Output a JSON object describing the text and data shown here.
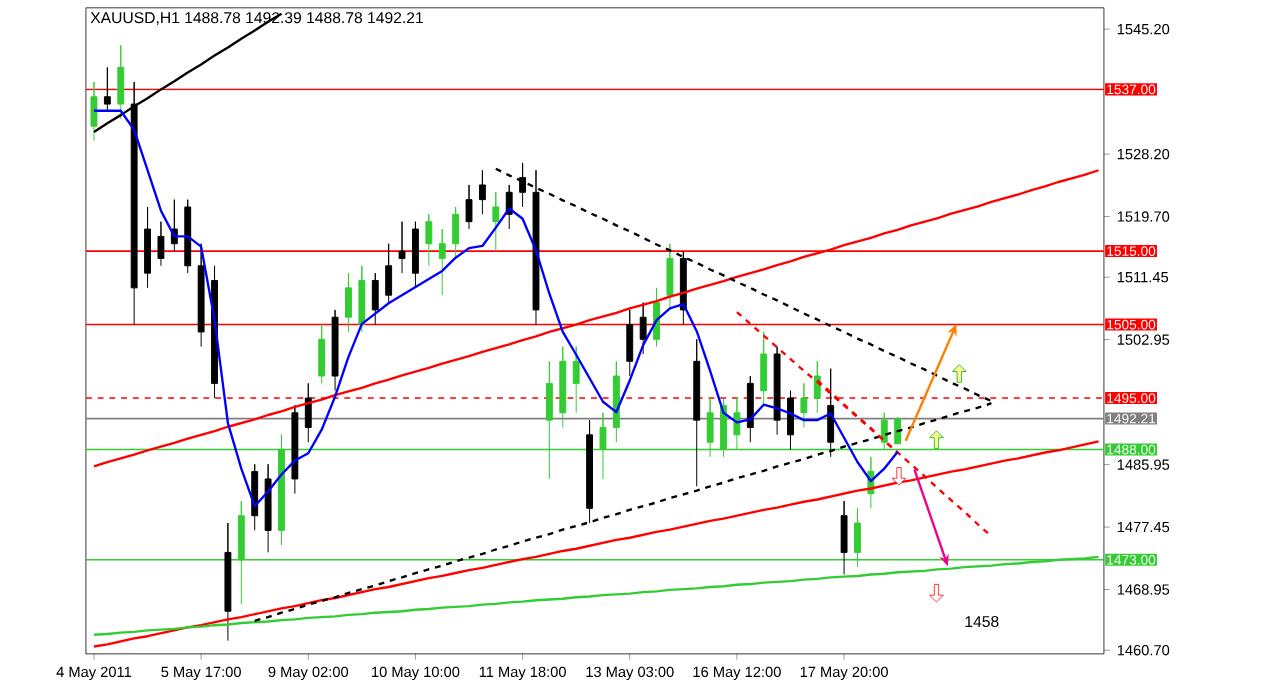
{
  "chart_data": {
    "type": "candlestick",
    "title": "XAUUSD,H1  1488.78 1492.39 1488.78 1492.21",
    "ylim": [
      1460.2,
      1548.1
    ],
    "yticks": [
      {
        "value": 1545.2,
        "label": "1545.20"
      },
      {
        "value": 1528.2,
        "label": "1528.20"
      },
      {
        "value": 1519.7,
        "label": "1519.70"
      },
      {
        "value": 1511.45,
        "label": "1511.45"
      },
      {
        "value": 1502.95,
        "label": "1502.95"
      },
      {
        "value": 1485.95,
        "label": "1485.95"
      },
      {
        "value": 1477.45,
        "label": "1477.45"
      },
      {
        "value": 1468.95,
        "label": "1468.95"
      },
      {
        "value": 1460.7,
        "label": "1460.70"
      }
    ],
    "categories": [
      "4 May 2011",
      null,
      null,
      null,
      null,
      null,
      null,
      null,
      "5 May 17:00",
      null,
      null,
      null,
      null,
      null,
      null,
      null,
      "9 May 02:00",
      null,
      null,
      null,
      null,
      null,
      null,
      null,
      "10 May 10:00",
      null,
      null,
      null,
      null,
      null,
      null,
      null,
      "11 May 18:00",
      null,
      null,
      null,
      null,
      null,
      null,
      null,
      "13 May 03:00",
      null,
      null,
      null,
      null,
      null,
      null,
      null,
      "16 May 12:00",
      null,
      null,
      null,
      null,
      null,
      null,
      null,
      "17 May 20:00",
      null,
      null,
      null,
      null,
      null,
      null,
      null,
      null,
      null,
      null,
      null,
      null,
      null,
      null,
      null,
      null,
      null,
      null,
      null
    ],
    "ohlc": [
      [
        1532,
        1538,
        1530,
        1536
      ],
      [
        1536,
        1540,
        1534,
        1535
      ],
      [
        1535,
        1543,
        1533,
        1540
      ],
      [
        1535,
        1538,
        1505,
        1510
      ],
      [
        1518,
        1521,
        1510,
        1512
      ],
      [
        1517,
        1519,
        1513,
        1514
      ],
      [
        1518,
        1522,
        1515,
        1516
      ],
      [
        1521,
        1522,
        1512,
        1513
      ],
      [
        1513,
        1516,
        1502,
        1504
      ],
      [
        1511,
        1513,
        1495,
        1497
      ],
      [
        1474,
        1478,
        1462,
        1466
      ],
      [
        1473,
        1481,
        1467,
        1479
      ],
      [
        1485,
        1486,
        1477,
        1479
      ],
      [
        1484,
        1486,
        1474,
        1477
      ],
      [
        1477,
        1490,
        1475,
        1488
      ],
      [
        1493,
        1494,
        1482,
        1484
      ],
      [
        1495,
        1497,
        1489,
        1491
      ],
      [
        1498,
        1505,
        1497,
        1503
      ],
      [
        1506,
        1507,
        1496,
        1498
      ],
      [
        1506,
        1512,
        1504,
        1510
      ],
      [
        1505,
        1513,
        1504,
        1511
      ],
      [
        1511,
        1512,
        1505,
        1507
      ],
      [
        1513,
        1516,
        1508,
        1509
      ],
      [
        1515,
        1519,
        1512,
        1514
      ],
      [
        1518,
        1519,
        1510,
        1512
      ],
      [
        1516,
        1520,
        1513,
        1519
      ],
      [
        1514,
        1518,
        1509,
        1516
      ],
      [
        1516,
        1521,
        1514,
        1520
      ],
      [
        1522,
        1524,
        1518,
        1519
      ],
      [
        1524,
        1526,
        1520,
        1522
      ],
      [
        1519,
        1523,
        1515,
        1521
      ],
      [
        1523,
        1524,
        1518,
        1520
      ],
      [
        1525,
        1527,
        1521,
        1523
      ],
      [
        1523,
        1526,
        1505,
        1507
      ],
      [
        1492,
        1500,
        1484,
        1497
      ],
      [
        1493,
        1502,
        1491,
        1500
      ],
      [
        1497,
        1502,
        1493,
        1500
      ],
      [
        1490,
        1492,
        1478,
        1480
      ],
      [
        1488,
        1493,
        1484,
        1491
      ],
      [
        1491,
        1500,
        1489,
        1498
      ],
      [
        1505,
        1507,
        1498,
        1500
      ],
      [
        1506,
        1508,
        1501,
        1503
      ],
      [
        1503,
        1510,
        1502,
        1508
      ],
      [
        1509,
        1516,
        1507,
        1514
      ],
      [
        1514,
        1515,
        1505,
        1507
      ],
      [
        1500,
        1503,
        1483,
        1492
      ],
      [
        1489,
        1495,
        1487,
        1493
      ],
      [
        1488,
        1495,
        1487,
        1494
      ],
      [
        1490,
        1495,
        1488,
        1493
      ],
      [
        1497,
        1498,
        1489,
        1491
      ],
      [
        1496,
        1504,
        1494,
        1501
      ],
      [
        1501,
        1502,
        1490,
        1492
      ],
      [
        1495,
        1496,
        1488,
        1490
      ],
      [
        1493,
        1497,
        1491,
        1495
      ],
      [
        1495,
        1500,
        1493,
        1498
      ],
      [
        1494,
        1499,
        1487,
        1489
      ],
      [
        1479,
        1481,
        1471,
        1474
      ],
      [
        1474,
        1480,
        1472,
        1478
      ],
      [
        1482,
        1487,
        1480,
        1485
      ],
      [
        1489,
        1493,
        1488,
        1492
      ],
      [
        1488.78,
        1492.39,
        1488.78,
        1492.21
      ],
      null,
      null,
      null,
      null,
      null,
      null,
      null,
      null,
      null,
      null,
      null,
      null,
      null,
      null,
      null
    ],
    "colors": [
      "#33cc33",
      "#000000",
      "#33cc33",
      "#000000",
      "#000000",
      "#000000",
      "#000000",
      "#000000",
      "#000000",
      "#000000",
      "#000000",
      "#33cc33",
      "#000000",
      "#000000",
      "#33cc33",
      "#000000",
      "#000000",
      "#33cc33",
      "#000000",
      "#33cc33",
      "#33cc33",
      "#000000",
      "#000000",
      "#000000",
      "#000000",
      "#33cc33",
      "#33cc33",
      "#33cc33",
      "#000000",
      "#000000",
      "#33cc33",
      "#000000",
      "#000000",
      "#000000",
      "#33cc33",
      "#33cc33",
      "#33cc33",
      "#000000",
      "#33cc33",
      "#33cc33",
      "#000000",
      "#000000",
      "#33cc33",
      "#33cc33",
      "#000000",
      "#000000",
      "#33cc33",
      "#33cc33",
      "#33cc33",
      "#000000",
      "#33cc33",
      "#000000",
      "#000000",
      "#33cc33",
      "#33cc33",
      "#000000",
      "#000000",
      "#33cc33",
      "#33cc33",
      "#33cc33",
      "#33cc33",
      null,
      null,
      null,
      null,
      null,
      null,
      null,
      null,
      null,
      null,
      null,
      null,
      null,
      null,
      null
    ],
    "series": [
      {
        "type": "line",
        "color": "#ff0000",
        "values": [
          1485.7,
          1486.3,
          1486.8,
          1487.3,
          1487.9,
          1488.4,
          1488.9,
          1489.5,
          1490.0,
          1490.5,
          1491.1,
          1491.6,
          1492.1,
          1492.7,
          1493.2,
          1493.8,
          1494.3,
          1494.8,
          1495.4,
          1495.9,
          1496.4,
          1497.0,
          1497.5,
          1498.1,
          1498.6,
          1499.1,
          1499.7,
          1500.2,
          1500.7,
          1501.3,
          1501.8,
          1502.3,
          1502.9,
          1503.4,
          1504.0,
          1504.5,
          1505.0,
          1505.6,
          1506.1,
          1506.6,
          1507.2,
          1507.7,
          1508.2,
          1508.8,
          1509.3,
          1509.9,
          1510.4,
          1510.9,
          1511.5,
          1512.0,
          1512.5,
          1513.1,
          1513.6,
          1514.2,
          1514.7,
          1515.2,
          1515.8,
          1516.3,
          1516.8,
          1517.4,
          1517.9,
          1518.5,
          1519.0,
          1519.5,
          1520.1,
          1520.6,
          1521.1,
          1521.7,
          1522.2,
          1522.7,
          1523.3,
          1523.8,
          1524.4,
          1524.9,
          1525.4,
          1526.0
        ]
      },
      {
        "type": "line",
        "color": "#ff0000",
        "values": [
          1461.2,
          1461.5,
          1461.9,
          1462.3,
          1462.6,
          1463.0,
          1463.4,
          1463.8,
          1464.1,
          1464.5,
          1464.9,
          1465.2,
          1465.6,
          1466.0,
          1466.4,
          1466.7,
          1467.1,
          1467.5,
          1467.8,
          1468.2,
          1468.6,
          1469.0,
          1469.3,
          1469.7,
          1470.1,
          1470.5,
          1470.8,
          1471.2,
          1471.6,
          1471.9,
          1472.3,
          1472.7,
          1473.1,
          1473.4,
          1473.8,
          1474.2,
          1474.5,
          1474.9,
          1475.3,
          1475.7,
          1476.0,
          1476.4,
          1476.8,
          1477.1,
          1477.5,
          1477.9,
          1478.3,
          1478.6,
          1479.0,
          1479.4,
          1479.8,
          1480.1,
          1480.5,
          1480.9,
          1481.2,
          1481.6,
          1482.0,
          1482.4,
          1482.7,
          1483.1,
          1483.5,
          1483.8,
          1484.2,
          1484.6,
          1485.0,
          1485.3,
          1485.7,
          1486.1,
          1486.5,
          1486.8,
          1487.2,
          1487.6,
          1487.9,
          1488.3,
          1488.7,
          1489.1
        ]
      },
      {
        "type": "line",
        "color": "#33cc33",
        "values": [
          1462.8,
          1462.9,
          1463.1,
          1463.2,
          1463.4,
          1463.5,
          1463.6,
          1463.8,
          1463.9,
          1464.1,
          1464.2,
          1464.4,
          1464.5,
          1464.6,
          1464.8,
          1464.9,
          1465.1,
          1465.2,
          1465.3,
          1465.5,
          1465.6,
          1465.8,
          1465.9,
          1466.0,
          1466.2,
          1466.3,
          1466.5,
          1466.6,
          1466.7,
          1466.9,
          1467.0,
          1467.2,
          1467.3,
          1467.5,
          1467.6,
          1467.7,
          1467.9,
          1468.0,
          1468.2,
          1468.3,
          1468.4,
          1468.6,
          1468.7,
          1468.9,
          1469.0,
          1469.1,
          1469.3,
          1469.4,
          1469.6,
          1469.7,
          1469.9,
          1470.0,
          1470.1,
          1470.3,
          1470.4,
          1470.6,
          1470.7,
          1470.8,
          1471.0,
          1471.1,
          1471.3,
          1471.4,
          1471.5,
          1471.7,
          1471.8,
          1472.0,
          1472.1,
          1472.2,
          1472.4,
          1472.5,
          1472.7,
          1472.8,
          1473.0,
          1473.1,
          1473.2,
          1473.4
        ]
      },
      {
        "type": "line",
        "color": "#000000",
        "line_style": "dashed",
        "values": [
          null,
          null,
          null,
          null,
          null,
          null,
          null,
          null,
          null,
          null,
          null,
          null,
          null,
          null,
          null,
          null,
          null,
          null,
          null,
          null,
          null,
          null,
          null,
          null,
          null,
          null,
          null,
          null,
          null,
          null,
          1526.2,
          1525.3,
          1524.5,
          1523.6,
          1522.8,
          1521.9,
          1521.1,
          1520.2,
          1519.4,
          1518.5,
          1517.7,
          1516.8,
          1515.9,
          1515.1,
          1514.2,
          1513.4,
          1512.5,
          1511.7,
          1510.8,
          1510.0,
          1509.1,
          1508.3,
          1507.4,
          1506.5,
          1505.7,
          1504.8,
          1504.0,
          1503.1,
          1502.3,
          1501.4,
          1500.6,
          1499.7,
          1498.9,
          1498.0,
          1497.1,
          1496.3,
          1495.4,
          1494.6,
          null,
          null,
          null,
          null,
          null,
          null,
          null,
          null
        ]
      },
      {
        "type": "line",
        "color": "#000000",
        "line_style": "dashed",
        "values": [
          null,
          null,
          null,
          null,
          null,
          null,
          null,
          null,
          null,
          null,
          null,
          null,
          1464.7,
          1465.2,
          1465.8,
          1466.3,
          1466.9,
          1467.4,
          1467.9,
          1468.5,
          1469.0,
          1469.5,
          1470.1,
          1470.6,
          1471.2,
          1471.7,
          1472.2,
          1472.8,
          1473.3,
          1473.8,
          1474.4,
          1474.9,
          1475.5,
          1476.0,
          1476.5,
          1477.1,
          1477.6,
          1478.1,
          1478.7,
          1479.2,
          1479.8,
          1480.3,
          1480.8,
          1481.4,
          1481.9,
          1482.4,
          1483.0,
          1483.5,
          1484.1,
          1484.6,
          1485.1,
          1485.7,
          1486.2,
          1486.7,
          1487.3,
          1487.8,
          1488.4,
          1488.9,
          1489.4,
          1490.0,
          1490.5,
          1491.0,
          1491.6,
          1492.1,
          1492.7,
          1493.2,
          1493.7,
          1494.3,
          null,
          null,
          null,
          null,
          null,
          null,
          null,
          null
        ]
      },
      {
        "type": "line",
        "color": "#000000",
        "values": [
          1531.2,
          1532.4,
          1533.5,
          1534.7,
          1535.8,
          1537.0,
          1538.1,
          1539.3,
          1540.4,
          1541.6,
          1542.7,
          1543.9,
          1545.0,
          1546.2,
          1547.3,
          null,
          null,
          null,
          null,
          null,
          null,
          null,
          null,
          null,
          null,
          null,
          null,
          null,
          null,
          null,
          null,
          null,
          null,
          null,
          null,
          null,
          null,
          null,
          null,
          null,
          null,
          null,
          null,
          null,
          null,
          null,
          null,
          null,
          null,
          null,
          null,
          null,
          null,
          null,
          null,
          null,
          null,
          null,
          null,
          null,
          null,
          null,
          null,
          null,
          null,
          null,
          null,
          null,
          null,
          null,
          null,
          null,
          null,
          null,
          null,
          null
        ]
      },
      {
        "type": "line",
        "color": "#ff0000",
        "line_style": "dashed",
        "values": [
          null,
          null,
          null,
          null,
          null,
          null,
          null,
          null,
          null,
          null,
          null,
          null,
          null,
          null,
          null,
          null,
          null,
          null,
          null,
          null,
          null,
          null,
          null,
          null,
          null,
          null,
          null,
          null,
          null,
          null,
          null,
          null,
          null,
          null,
          null,
          null,
          null,
          null,
          null,
          null,
          null,
          null,
          null,
          null,
          null,
          null,
          null,
          null,
          1506.7,
          1505.1,
          1503.5,
          1501.9,
          1500.3,
          1498.7,
          1497.2,
          1495.6,
          1494.0,
          1492.4,
          1490.8,
          1489.2,
          1487.6,
          null,
          null,
          null,
          null,
          null,
          null,
          null,
          null,
          null,
          null,
          null,
          null,
          null,
          null,
          null
        ]
      },
      {
        "type": "line",
        "color": "#ff0000",
        "line_style": "dashed",
        "values": [
          null,
          null,
          null,
          null,
          null,
          null,
          null,
          null,
          null,
          null,
          null,
          null,
          null,
          null,
          null,
          null,
          null,
          null,
          null,
          null,
          null,
          null,
          null,
          null,
          null,
          null,
          null,
          null,
          null,
          null,
          null,
          null,
          null,
          null,
          null,
          null,
          null,
          null,
          null,
          null,
          null,
          null,
          null,
          null,
          null,
          null,
          null,
          null,
          null,
          null,
          null,
          null,
          null,
          null,
          1497.4,
          1495.8,
          1494.1,
          1492.5,
          1490.9,
          1489.2,
          1487.6,
          1486.0,
          1484.4,
          1482.7,
          1481.1,
          1479.5,
          1477.8,
          1476.2,
          null,
          null,
          null,
          null,
          null,
          null,
          null,
          null
        ]
      },
      {
        "type": "line",
        "color": "#0000ff",
        "values": [
          1534.1,
          1534.1,
          1534.1,
          1531.5,
          1526.0,
          1520.5,
          1517.0,
          1517.0,
          1515.6,
          1505.7,
          1491.6,
          1485.4,
          1480.3,
          1482.3,
          1484.6,
          1486.5,
          1487.5,
          1490.7,
          1495.2,
          1500.6,
          1505.1,
          1506.5,
          1507.9,
          1509.0,
          1510.1,
          1511.2,
          1512.3,
          1514.1,
          1515.4,
          1515.7,
          1518.2,
          1520.8,
          1519.4,
          1515.1,
          1509.2,
          1504.0,
          1500.9,
          1497.7,
          1494.5,
          1493.1,
          1497.4,
          1502.2,
          1505.6,
          1507.2,
          1507.8,
          1504.1,
          1498.7,
          1493.0,
          1491.7,
          1492.1,
          1494.1,
          1493.6,
          1492.9,
          1492.0,
          1492.0,
          1492.9,
          1489.6,
          1486.3,
          1483.7,
          1485.4,
          1487.7,
          null,
          null,
          null,
          null,
          null,
          null,
          null,
          null,
          null,
          null,
          null,
          null,
          null,
          null,
          null
        ]
      }
    ],
    "ref_lines": [
      {
        "axis": "y",
        "value": 1537,
        "label": "1537.00",
        "color": "#ff0000"
      },
      {
        "axis": "y",
        "value": 1515,
        "label": "1515.00",
        "color": "#ff0000"
      },
      {
        "axis": "y",
        "value": 1505,
        "label": "1505.00",
        "color": "#ff0000"
      },
      {
        "axis": "y",
        "value": 1495,
        "label": "1495.00",
        "color": "#ff0000",
        "line_style": "dashed"
      },
      {
        "axis": "y",
        "value": 1492.21,
        "label": "1492.21",
        "color": "#808080"
      },
      {
        "axis": "y",
        "value": 1488,
        "label": "1488.00",
        "color": "#33cc33"
      },
      {
        "axis": "y",
        "value": 1473,
        "label": "1473.00",
        "color": "#33cc33"
      }
    ],
    "annotations": [
      "1458"
    ]
  }
}
